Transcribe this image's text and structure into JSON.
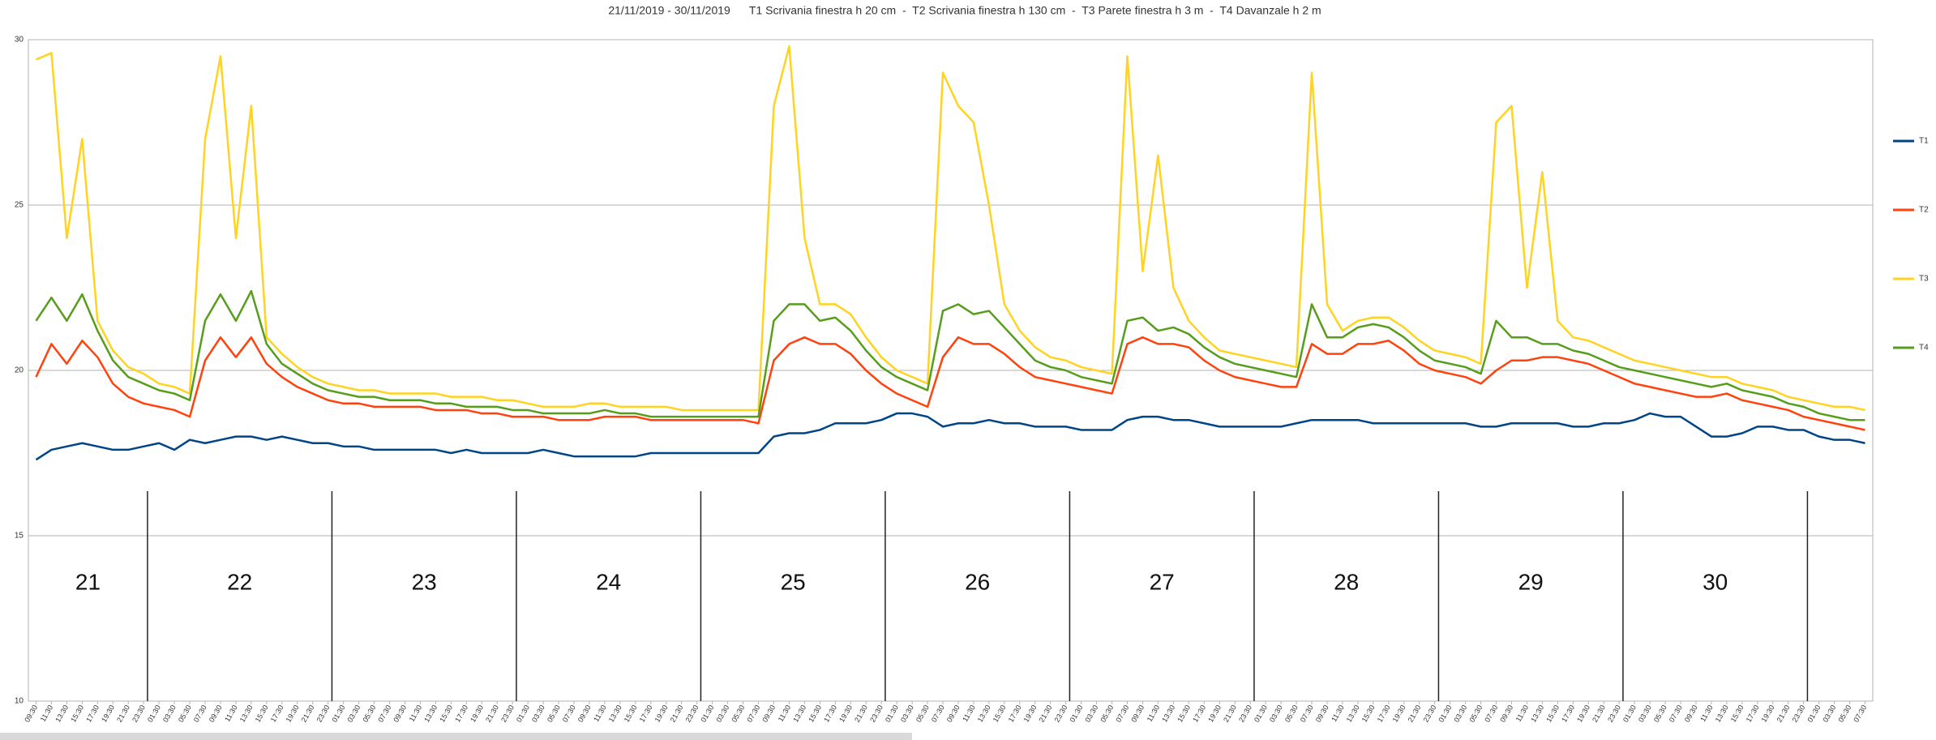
{
  "chart_data": {
    "type": "line",
    "title": "21/11/2019 - 30/11/2019      T1 Scrivania finestra h 20 cm  -  T2 Scrivania finestra h 130 cm  -  T3 Parete finestra h 3 m  -  T4 Davanzale h 2 m",
    "categories": [
      "09:30",
      "11:30",
      "13:30",
      "15:30",
      "17:30",
      "19:30",
      "21:30",
      "23:30",
      "01:30",
      "03:30",
      "05:30",
      "07:30",
      "09:30",
      "11:30",
      "13:30",
      "15:30",
      "17:30",
      "19:30",
      "21:30",
      "23:30",
      "01:30",
      "03:30",
      "05:30",
      "07:30",
      "09:30",
      "11:30",
      "13:30",
      "15:30",
      "17:30",
      "19:30",
      "21:30",
      "23:30",
      "01:30",
      "03:30",
      "05:30",
      "07:30",
      "09:30",
      "11:30",
      "13:30",
      "15:30",
      "17:30",
      "19:30",
      "21:30",
      "23:30",
      "01:30",
      "03:30",
      "05:30",
      "07:30",
      "09:30",
      "11:30",
      "13:30",
      "15:30",
      "17:30",
      "19:30",
      "21:30",
      "23:30",
      "01:30",
      "03:30",
      "05:30",
      "07:30",
      "09:30",
      "11:30",
      "13:30",
      "15:30",
      "17:30",
      "19:30",
      "21:30",
      "23:30",
      "01:30",
      "03:30",
      "05:30",
      "07:30",
      "09:30",
      "11:30",
      "13:30",
      "15:30",
      "17:30",
      "19:30",
      "21:30",
      "23:30",
      "01:30",
      "03:30",
      "05:30",
      "07:30",
      "09:30",
      "11:30",
      "13:30",
      "15:30",
      "17:30",
      "19:30",
      "21:30",
      "23:30",
      "01:30",
      "03:30",
      "05:30",
      "07:30",
      "09:30",
      "11:30",
      "13:30",
      "15:30",
      "17:30",
      "19:30",
      "21:30",
      "23:30",
      "01:30",
      "03:30",
      "05:30",
      "07:30",
      "09:30",
      "11:30",
      "13:30",
      "15:30",
      "17:30",
      "19:30",
      "21:30",
      "23:30",
      "01:30",
      "03:30",
      "05:30",
      "07:30"
    ],
    "series": [
      {
        "name": "T1",
        "color": "#004586",
        "values": [
          17.3,
          17.6,
          17.7,
          17.8,
          17.7,
          17.6,
          17.6,
          17.7,
          17.8,
          17.6,
          17.9,
          17.8,
          17.9,
          18.0,
          18.0,
          17.9,
          18.0,
          17.9,
          17.8,
          17.8,
          17.7,
          17.7,
          17.6,
          17.6,
          17.6,
          17.6,
          17.6,
          17.5,
          17.6,
          17.5,
          17.5,
          17.5,
          17.5,
          17.6,
          17.5,
          17.4,
          17.4,
          17.4,
          17.4,
          17.4,
          17.5,
          17.5,
          17.5,
          17.5,
          17.5,
          17.5,
          17.5,
          17.5,
          18.0,
          18.1,
          18.1,
          18.2,
          18.4,
          18.4,
          18.4,
          18.5,
          18.7,
          18.7,
          18.6,
          18.3,
          18.4,
          18.4,
          18.5,
          18.4,
          18.4,
          18.3,
          18.3,
          18.3,
          18.2,
          18.2,
          18.2,
          18.5,
          18.6,
          18.6,
          18.5,
          18.5,
          18.4,
          18.3,
          18.3,
          18.3,
          18.3,
          18.3,
          18.4,
          18.5,
          18.5,
          18.5,
          18.5,
          18.4,
          18.4,
          18.4,
          18.4,
          18.4,
          18.4,
          18.4,
          18.3,
          18.3,
          18.4,
          18.4,
          18.4,
          18.4,
          18.3,
          18.3,
          18.4,
          18.4,
          18.5,
          18.7,
          18.6,
          18.6,
          18.3,
          18.0,
          18.0,
          18.1,
          18.3,
          18.3,
          18.2,
          18.2,
          18.0,
          17.9,
          17.9,
          17.8
        ]
      },
      {
        "name": "T2",
        "color": "#ff420e",
        "values": [
          19.8,
          20.8,
          20.2,
          20.9,
          20.4,
          19.6,
          19.2,
          19.0,
          18.9,
          18.8,
          18.6,
          20.3,
          21.0,
          20.4,
          21.0,
          20.2,
          19.8,
          19.5,
          19.3,
          19.1,
          19.0,
          19.0,
          18.9,
          18.9,
          18.9,
          18.9,
          18.8,
          18.8,
          18.8,
          18.7,
          18.7,
          18.6,
          18.6,
          18.6,
          18.5,
          18.5,
          18.5,
          18.6,
          18.6,
          18.6,
          18.5,
          18.5,
          18.5,
          18.5,
          18.5,
          18.5,
          18.5,
          18.4,
          20.3,
          20.8,
          21.0,
          20.8,
          20.8,
          20.5,
          20.0,
          19.6,
          19.3,
          19.1,
          18.9,
          20.4,
          21.0,
          20.8,
          20.8,
          20.5,
          20.1,
          19.8,
          19.7,
          19.6,
          19.5,
          19.4,
          19.3,
          20.8,
          21.0,
          20.8,
          20.8,
          20.7,
          20.3,
          20.0,
          19.8,
          19.7,
          19.6,
          19.5,
          19.5,
          20.8,
          20.5,
          20.5,
          20.8,
          20.8,
          20.9,
          20.6,
          20.2,
          20.0,
          19.9,
          19.8,
          19.6,
          20.0,
          20.3,
          20.3,
          20.4,
          20.4,
          20.3,
          20.2,
          20.0,
          19.8,
          19.6,
          19.5,
          19.4,
          19.3,
          19.2,
          19.2,
          19.3,
          19.1,
          19.0,
          18.9,
          18.8,
          18.6,
          18.5,
          18.4,
          18.3,
          18.2
        ]
      },
      {
        "name": "T3",
        "color": "#ffd320",
        "values": [
          29.4,
          29.6,
          24.0,
          27.0,
          21.5,
          20.6,
          20.1,
          19.9,
          19.6,
          19.5,
          19.3,
          27.0,
          29.5,
          24.0,
          28.0,
          21.0,
          20.5,
          20.1,
          19.8,
          19.6,
          19.5,
          19.4,
          19.4,
          19.3,
          19.3,
          19.3,
          19.3,
          19.2,
          19.2,
          19.2,
          19.1,
          19.1,
          19.0,
          18.9,
          18.9,
          18.9,
          19.0,
          19.0,
          18.9,
          18.9,
          18.9,
          18.9,
          18.8,
          18.8,
          18.8,
          18.8,
          18.8,
          18.8,
          28.0,
          29.8,
          24.0,
          22.0,
          22.0,
          21.7,
          21.0,
          20.4,
          20.0,
          19.8,
          19.6,
          29.0,
          28.0,
          27.5,
          25.0,
          22.0,
          21.2,
          20.7,
          20.4,
          20.3,
          20.1,
          20.0,
          19.9,
          29.5,
          23.0,
          26.5,
          22.5,
          21.5,
          21.0,
          20.6,
          20.5,
          20.4,
          20.3,
          20.2,
          20.1,
          29.0,
          22.0,
          21.2,
          21.5,
          21.6,
          21.6,
          21.3,
          20.9,
          20.6,
          20.5,
          20.4,
          20.2,
          27.5,
          28.0,
          22.5,
          26.0,
          21.5,
          21.0,
          20.9,
          20.7,
          20.5,
          20.3,
          20.2,
          20.1,
          20.0,
          19.9,
          19.8,
          19.8,
          19.6,
          19.5,
          19.4,
          19.2,
          19.1,
          19.0,
          18.9,
          18.9,
          18.8
        ]
      },
      {
        "name": "T4",
        "color": "#579d1c",
        "values": [
          21.5,
          22.2,
          21.5,
          22.3,
          21.2,
          20.3,
          19.8,
          19.6,
          19.4,
          19.3,
          19.1,
          21.5,
          22.3,
          21.5,
          22.4,
          20.8,
          20.2,
          19.9,
          19.6,
          19.4,
          19.3,
          19.2,
          19.2,
          19.1,
          19.1,
          19.1,
          19.0,
          19.0,
          18.9,
          18.9,
          18.9,
          18.8,
          18.8,
          18.7,
          18.7,
          18.7,
          18.7,
          18.8,
          18.7,
          18.7,
          18.6,
          18.6,
          18.6,
          18.6,
          18.6,
          18.6,
          18.6,
          18.6,
          21.5,
          22.0,
          22.0,
          21.5,
          21.6,
          21.2,
          20.6,
          20.1,
          19.8,
          19.6,
          19.4,
          21.8,
          22.0,
          21.7,
          21.8,
          21.3,
          20.8,
          20.3,
          20.1,
          20.0,
          19.8,
          19.7,
          19.6,
          21.5,
          21.6,
          21.2,
          21.3,
          21.1,
          20.7,
          20.4,
          20.2,
          20.1,
          20.0,
          19.9,
          19.8,
          22.0,
          21.0,
          21.0,
          21.3,
          21.4,
          21.3,
          21.0,
          20.6,
          20.3,
          20.2,
          20.1,
          19.9,
          21.5,
          21.0,
          21.0,
          20.8,
          20.8,
          20.6,
          20.5,
          20.3,
          20.1,
          20.0,
          19.9,
          19.8,
          19.7,
          19.6,
          19.5,
          19.6,
          19.4,
          19.3,
          19.2,
          19.0,
          18.9,
          18.7,
          18.6,
          18.5,
          18.5
        ]
      }
    ],
    "annotations": [
      "21",
      "22",
      "23",
      "24",
      "25",
      "26",
      "27",
      "28",
      "29",
      "30"
    ],
    "ylim": [
      10,
      30
    ],
    "yticks": [
      10,
      15,
      20,
      25,
      30
    ],
    "grid": true,
    "legend": "right"
  }
}
